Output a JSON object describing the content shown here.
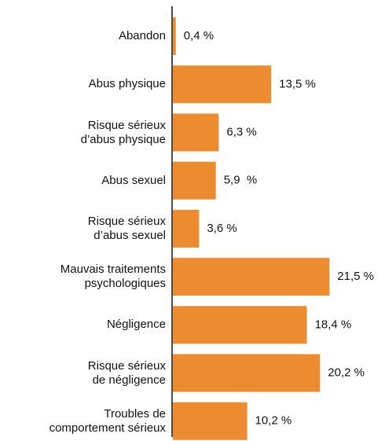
{
  "chart_data": {
    "type": "bar",
    "orientation": "horizontal",
    "color": "#ed8b30",
    "categories": [
      "Abandon",
      "Abus physique",
      "Risque sérieux\nd’abus physique",
      "Abus sexuel",
      "Risque sérieux\nd’abus sexuel",
      "Mauvais traitements\npsychologiques",
      "Négligence",
      "Risque sérieux\nde négligence",
      "Troubles de\ncomportement sérieux"
    ],
    "values": [
      0.4,
      13.5,
      6.3,
      5.9,
      3.6,
      21.5,
      18.4,
      20.2,
      10.2
    ],
    "value_labels": [
      "0,4 %",
      "13,5 %",
      "6,3 %",
      "5,9  %",
      "3,6 %",
      "21,5 %",
      "18,4 %",
      "20,2 %",
      "10,2 %"
    ]
  }
}
